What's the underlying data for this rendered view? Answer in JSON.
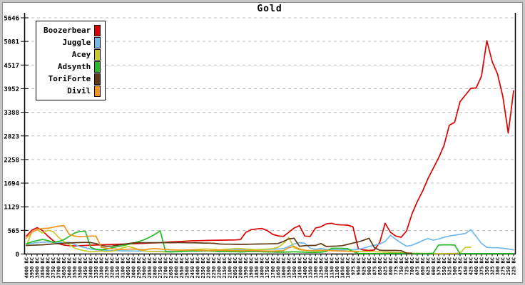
{
  "window": {
    "panel_name": "gold-graph-panel"
  },
  "chart_data": {
    "type": "line",
    "title": "Gold",
    "xlabel": "",
    "ylabel": "",
    "ylim": [
      0,
      5646
    ],
    "y_ticks": [
      0,
      565,
      1129,
      1694,
      2258,
      2823,
      3388,
      3952,
      4517,
      5081,
      5646
    ],
    "grid": "horizontal-dashed",
    "legend_position": "top-left",
    "categories": [
      "4000 BC",
      "3950 BC",
      "3900 BC",
      "3850 BC",
      "3800 BC",
      "3750 BC",
      "3700 BC",
      "3650 BC",
      "3600 BC",
      "3550 BC",
      "3500 BC",
      "3450 BC",
      "3400 BC",
      "3350 BC",
      "3300 BC",
      "3250 BC",
      "3200 BC",
      "3150 BC",
      "3100 BC",
      "3050 BC",
      "3000 BC",
      "2950 BC",
      "2900 BC",
      "2850 BC",
      "2800 BC",
      "2750 BC",
      "2700 BC",
      "2650 BC",
      "2600 BC",
      "2550 BC",
      "2500 BC",
      "2450 BC",
      "2400 BC",
      "2350 BC",
      "2300 BC",
      "2250 BC",
      "2200 BC",
      "2150 BC",
      "2100 BC",
      "2050 BC",
      "2000 BC",
      "1950 BC",
      "1900 BC",
      "1850 BC",
      "1800 BC",
      "1750 BC",
      "1700 BC",
      "1650 BC",
      "1600 BC",
      "1550 BC",
      "1500 BC",
      "1450 BC",
      "1400 BC",
      "1350 BC",
      "1300 BC",
      "1250 BC",
      "1200 BC",
      "1150 BC",
      "1100 BC",
      "1050 BC",
      "1000 BC",
      "975 BC",
      "950 BC",
      "925 BC",
      "900 BC",
      "875 BC",
      "850 BC",
      "825 BC",
      "800 BC",
      "775 BC",
      "750 BC",
      "725 BC",
      "700 BC",
      "675 BC",
      "650 BC",
      "625 BC",
      "600 BC",
      "575 BC",
      "550 BC",
      "525 BC",
      "500 BC",
      "475 BC",
      "450 BC",
      "425 BC",
      "400 BC",
      "375 BC",
      "350 BC",
      "325 BC",
      "300 BC",
      "275 BC",
      "250 BC",
      "225 BC"
    ],
    "series": [
      {
        "name": "Boozerbear",
        "color": "#dd0000",
        "values": [
          430,
          565,
          630,
          560,
          430,
          320,
          245,
          215,
          200,
          195,
          200,
          205,
          210,
          215,
          220,
          225,
          228,
          232,
          236,
          240,
          245,
          250,
          255,
          260,
          265,
          270,
          280,
          290,
          295,
          300,
          310,
          315,
          318,
          322,
          325,
          328,
          330,
          332,
          334,
          336,
          345,
          520,
          580,
          600,
          610,
          560,
          470,
          435,
          420,
          520,
          620,
          680,
          430,
          420,
          620,
          650,
          720,
          735,
          700,
          695,
          690,
          650,
          130,
          95,
          85,
          95,
          280,
          735,
          520,
          430,
          400,
          550,
          950,
          1250,
          1500,
          1800,
          2050,
          2300,
          2590,
          3080,
          3150,
          3640,
          3800,
          3960,
          3970,
          4250,
          5100,
          4600,
          4300,
          3760,
          2890,
          3900
        ]
      },
      {
        "name": "Juggle",
        "color": "#72b8e8",
        "values": [
          235,
          255,
          270,
          280,
          290,
          280,
          270,
          280,
          280,
          230,
          180,
          150,
          120,
          100,
          90,
          85,
          80,
          80,
          75,
          75,
          70,
          70,
          70,
          65,
          65,
          65,
          65,
          65,
          65,
          65,
          65,
          70,
          70,
          70,
          75,
          75,
          80,
          85,
          90,
          95,
          100,
          100,
          105,
          105,
          110,
          110,
          115,
          120,
          130,
          180,
          240,
          270,
          255,
          140,
          110,
          130,
          110,
          105,
          100,
          100,
          105,
          105,
          110,
          140,
          180,
          210,
          240,
          300,
          448,
          350,
          265,
          185,
          210,
          260,
          320,
          370,
          330,
          360,
          400,
          430,
          450,
          470,
          490,
          580,
          420,
          250,
          160,
          150,
          150,
          140,
          120,
          100
        ]
      },
      {
        "name": "Acey",
        "color": "#c9c92a",
        "values": [
          200,
          520,
          580,
          500,
          565,
          540,
          400,
          300,
          230,
          140,
          100,
          75,
          55,
          60,
          70,
          60,
          65,
          100,
          150,
          180,
          150,
          100,
          75,
          60,
          60,
          55,
          50,
          55,
          60,
          70,
          90,
          100,
          110,
          120,
          120,
          110,
          100,
          110,
          120,
          130,
          130,
          120,
          110,
          100,
          110,
          120,
          130,
          160,
          250,
          400,
          150,
          100,
          90,
          80,
          70,
          80,
          90,
          80,
          70,
          70,
          70,
          70,
          65,
          60,
          60,
          55,
          50,
          45,
          40,
          35,
          30,
          25,
          20,
          20,
          15,
          15,
          10,
          10,
          10,
          15,
          15,
          20,
          160,
          160,
          null,
          null,
          null,
          null,
          null,
          null,
          null,
          null
        ]
      },
      {
        "name": "Adsynth",
        "color": "#25bc25",
        "values": [
          240,
          290,
          320,
          350,
          320,
          280,
          300,
          340,
          420,
          500,
          540,
          545,
          160,
          110,
          100,
          120,
          150,
          175,
          200,
          230,
          260,
          300,
          340,
          400,
          470,
          553,
          60,
          50,
          55,
          60,
          65,
          70,
          70,
          75,
          70,
          65,
          60,
          60,
          55,
          55,
          50,
          55,
          60,
          60,
          55,
          50,
          50,
          45,
          45,
          50,
          55,
          50,
          45,
          40,
          40,
          45,
          60,
          135,
          140,
          135,
          130,
          60,
          15,
          10,
          10,
          10,
          10,
          10,
          15,
          15,
          15,
          10,
          10,
          10,
          10,
          10,
          20,
          215,
          220,
          220,
          215,
          10,
          10,
          10,
          10,
          10,
          10,
          10,
          10,
          10,
          10,
          10
        ]
      },
      {
        "name": "ToriForte",
        "color": "#5f3913",
        "values": [
          205,
          210,
          215,
          220,
          230,
          240,
          250,
          255,
          265,
          270,
          275,
          277,
          275,
          250,
          200,
          185,
          190,
          210,
          230,
          250,
          265,
          270,
          270,
          270,
          270,
          270,
          270,
          270,
          272,
          272,
          270,
          268,
          265,
          262,
          260,
          255,
          240,
          235,
          235,
          232,
          230,
          232,
          235,
          238,
          240,
          242,
          245,
          250,
          300,
          360,
          377,
          185,
          200,
          205,
          205,
          250,
          180,
          185,
          190,
          200,
          230,
          260,
          290,
          330,
          377,
          150,
          90,
          85,
          85,
          85,
          80,
          20,
          20,
          null,
          null,
          null,
          null,
          null,
          null,
          null,
          null,
          null,
          null,
          null,
          null,
          null,
          null,
          null,
          null,
          null,
          null,
          null
        ]
      },
      {
        "name": "Divil",
        "color": "#f0941e",
        "values": [
          380,
          515,
          590,
          610,
          615,
          640,
          665,
          680,
          470,
          430,
          415,
          420,
          430,
          425,
          160,
          140,
          125,
          115,
          105,
          115,
          120,
          110,
          100,
          120,
          130,
          120,
          110,
          100,
          95,
          90,
          95,
          100,
          90,
          85,
          80,
          85,
          90,
          85,
          80,
          80,
          75,
          80,
          85,
          80,
          75,
          70,
          70,
          75,
          80,
          150,
          180,
          120,
          90,
          80,
          85,
          90,
          85,
          80,
          75,
          70,
          65,
          60,
          55,
          null,
          null,
          null,
          null,
          null,
          null,
          null,
          null,
          null,
          null,
          null,
          null,
          null,
          null,
          null,
          null,
          null,
          null,
          null,
          null,
          null,
          null,
          null,
          null,
          null,
          null,
          null,
          null,
          null
        ]
      }
    ]
  }
}
